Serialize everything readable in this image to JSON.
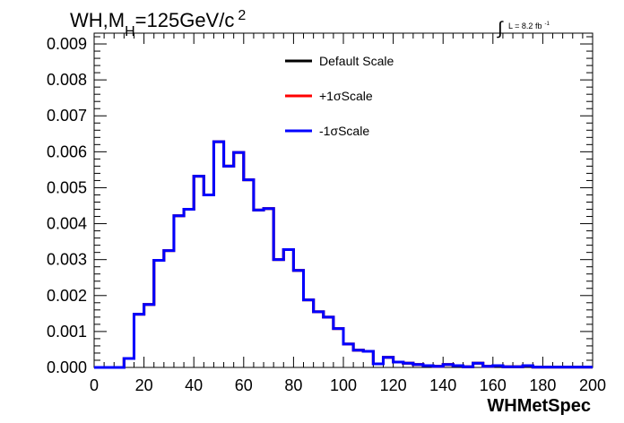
{
  "chart_data": {
    "type": "histogram",
    "title_main": "WH,M",
    "title_sub": "H",
    "title_rest": "=125GeV/c",
    "title_sup": "2",
    "lumi_label": "L = 8.2 fb",
    "lumi_sup": "-1",
    "xlabel": "WHMetSpec",
    "ylabel": "",
    "xlim": [
      0,
      200
    ],
    "ylim": [
      0,
      0.0093
    ],
    "bin_width": 4,
    "bin_start": 0,
    "xticks": [
      "0",
      "20",
      "40",
      "60",
      "80",
      "100",
      "120",
      "140",
      "160",
      "180",
      "200"
    ],
    "yticks": [
      "0.000",
      "0.001",
      "0.002",
      "0.003",
      "0.004",
      "0.005",
      "0.006",
      "0.007",
      "0.008",
      "0.009"
    ],
    "legend_position": "top-center",
    "series": [
      {
        "name": "Default Scale",
        "color": "#000000",
        "values": [
          0,
          0,
          0,
          0.00025,
          0.00148,
          0.00175,
          0.00298,
          0.00325,
          0.00422,
          0.0044,
          0.00532,
          0.0048,
          0.00628,
          0.0056,
          0.00598,
          0.00522,
          0.00438,
          0.00442,
          0.003,
          0.00328,
          0.0027,
          0.00188,
          0.00155,
          0.0014,
          0.00108,
          0.00065,
          0.00048,
          0.00045,
          0.0001,
          0.00028,
          0.00015,
          0.00012,
          8e-05,
          5e-05,
          3e-05,
          8e-05,
          5e-05,
          2e-05,
          0.00012,
          3e-05,
          5e-05,
          2e-05,
          2e-05,
          5e-05,
          1e-05,
          1e-05,
          1e-05,
          1e-05,
          1e-05,
          1e-05
        ]
      },
      {
        "name": "+1σScale",
        "color": "#ff0000",
        "values": [
          0,
          0,
          0,
          0.00025,
          0.00148,
          0.00175,
          0.00298,
          0.00325,
          0.00422,
          0.0044,
          0.00532,
          0.0048,
          0.00628,
          0.0056,
          0.00598,
          0.00522,
          0.00438,
          0.00442,
          0.003,
          0.00328,
          0.0027,
          0.00188,
          0.00155,
          0.0014,
          0.00108,
          0.00065,
          0.00048,
          0.00045,
          0.0001,
          0.00028,
          0.00015,
          0.00012,
          8e-05,
          5e-05,
          3e-05,
          8e-05,
          5e-05,
          2e-05,
          0.00012,
          3e-05,
          5e-05,
          2e-05,
          2e-05,
          5e-05,
          1e-05,
          1e-05,
          1e-05,
          1e-05,
          1e-05,
          1e-05
        ]
      },
      {
        "name": "-1σScale",
        "color": "#0000ff",
        "values": [
          0,
          0,
          0,
          0.00025,
          0.00148,
          0.00175,
          0.00298,
          0.00325,
          0.00422,
          0.0044,
          0.00532,
          0.0048,
          0.00628,
          0.0056,
          0.00598,
          0.00522,
          0.00438,
          0.00442,
          0.003,
          0.00328,
          0.0027,
          0.00188,
          0.00155,
          0.0014,
          0.00108,
          0.00065,
          0.00048,
          0.00045,
          0.0001,
          0.00028,
          0.00015,
          0.00012,
          8e-05,
          5e-05,
          3e-05,
          8e-05,
          5e-05,
          2e-05,
          0.00012,
          3e-05,
          5e-05,
          2e-05,
          2e-05,
          5e-05,
          1e-05,
          1e-05,
          1e-05,
          1e-05,
          1e-05,
          1e-05
        ]
      }
    ]
  }
}
